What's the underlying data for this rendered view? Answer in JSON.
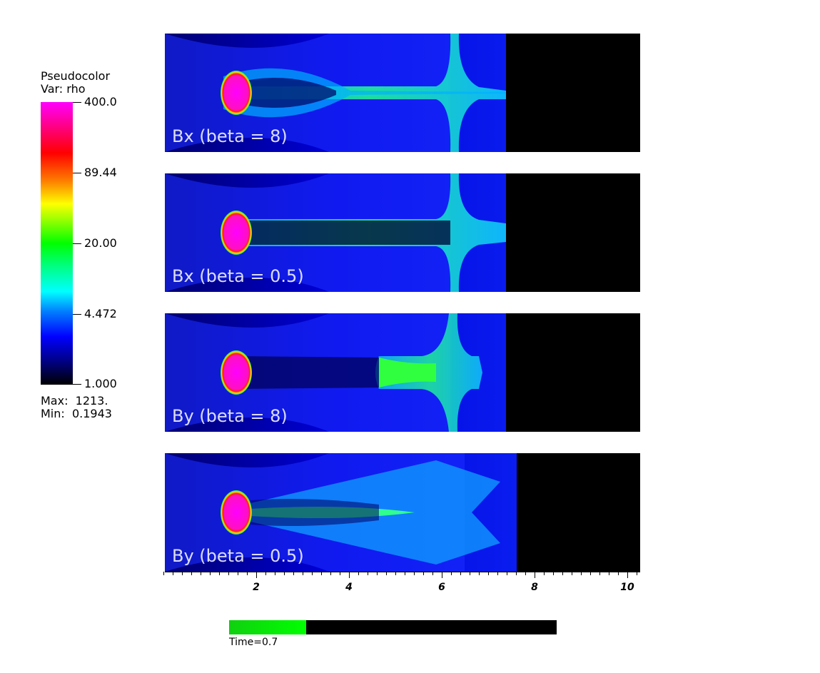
{
  "legend": {
    "title_line1": "Pseudocolor",
    "title_line2": "Var: rho",
    "ticks": [
      "400.0",
      "89.44",
      "20.00",
      "4.472",
      "1.000"
    ],
    "max_label": "Max:  1213.",
    "min_label": "Min:  0.1943"
  },
  "panels": [
    {
      "label": "Bx (beta = 8)"
    },
    {
      "label": "Bx (beta = 0.5)"
    },
    {
      "label": "By (beta = 8)"
    },
    {
      "label": "By (beta = 0.5)"
    }
  ],
  "x_axis": {
    "ticks": [
      "2",
      "4",
      "6",
      "8",
      "10"
    ]
  },
  "time": {
    "label": "Time=0.7",
    "progress": 0.235
  },
  "colors": {
    "colormap": [
      "#000000",
      "#0000ff",
      "#00ffff",
      "#00ff00",
      "#ffff00",
      "#ff0000",
      "#ff00ff"
    ],
    "background": "#ffffff"
  }
}
